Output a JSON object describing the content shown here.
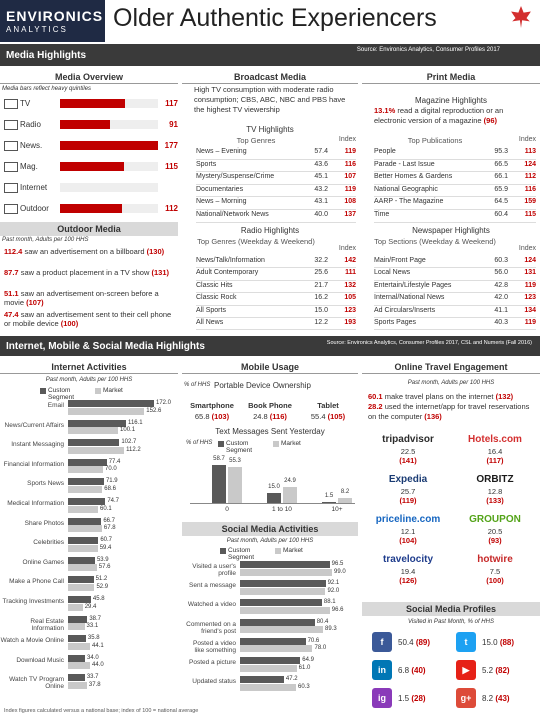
{
  "header": {
    "brand": "ENVIRONICS",
    "brand_sub": "ANALYTICS",
    "title": "Older Authentic Experiencers",
    "section": "Media Highlights",
    "source": "Source: Environics Analytics, Consumer Profiles 2017"
  },
  "media_overview": {
    "title": "Media Overview",
    "note": "Media bars reflect heavy quintiles",
    "items": [
      {
        "label": "TV",
        "value": 117
      },
      {
        "label": "Radio",
        "value": 91
      },
      {
        "label": "News.",
        "value": 177
      },
      {
        "label": "Mag.",
        "value": 115
      },
      {
        "label": "Internet",
        "value": null
      },
      {
        "label": "Outdoor",
        "value": 112
      }
    ]
  },
  "outdoor_media": {
    "title": "Outdoor Media",
    "note": "Past month, Adults per 100 HHS",
    "items": [
      {
        "value": 112.4,
        "text": "saw an advertisement on a billboard",
        "index": "(130)"
      },
      {
        "value": 87.7,
        "text": "saw a product placement in a TV show",
        "index": "(131)"
      },
      {
        "value": 51.1,
        "text": "saw an advertisement on-screen before a movie",
        "index": "(107)"
      },
      {
        "value": 47.4,
        "text": "saw an advertisement sent to their cell phone or mobile device",
        "index": "(100)"
      }
    ]
  },
  "broadcast_media": {
    "title": "Broadcast Media",
    "text": "High TV consumption with moderate radio consumption; CBS, ABC, NBC and PBS have the highest TV viewership",
    "tv": {
      "title": "TV Highlights",
      "header": [
        "Top Genres",
        "Index"
      ],
      "rows": [
        [
          "News – Evening",
          57.4,
          119
        ],
        [
          "Sports",
          43.6,
          116
        ],
        [
          "Mystery/Suspense/Crime",
          45.1,
          107
        ],
        [
          "Documentaries",
          43.2,
          119
        ],
        [
          "News – Morning",
          43.1,
          108
        ],
        [
          "National/Network News",
          "40.0",
          137
        ]
      ]
    },
    "radio": {
      "title": "Radio Highlights",
      "header": [
        "Top Genres (Weekday & Weekend)",
        "Index"
      ],
      "rows": [
        [
          "News/Talk/Information",
          32.2,
          142
        ],
        [
          "Adult Contemporary",
          25.6,
          111
        ],
        [
          "Classic Hits",
          21.7,
          132
        ],
        [
          "Classic Rock",
          16.2,
          105
        ],
        [
          "All Sports",
          "15.0",
          123
        ],
        [
          "All News",
          12.2,
          193
        ]
      ]
    }
  },
  "print_media": {
    "title": "Print Media",
    "magazine": {
      "title": "Magazine Highlights",
      "value": "13.1%",
      "text": "read a digital reproduction or an electronic version of a magazine",
      "index": "(96)",
      "header": [
        "Top Publications",
        "Index"
      ],
      "rows": [
        [
          "People",
          95.3,
          113
        ],
        [
          "Parade - Last Issue",
          66.5,
          124
        ],
        [
          "Better Homes & Gardens",
          66.1,
          112
        ],
        [
          "National Geographic",
          65.9,
          116
        ],
        [
          "AARP - The Magazine",
          64.5,
          159
        ],
        [
          "Time",
          60.4,
          115
        ]
      ]
    },
    "newspaper": {
      "title": "Newspaper Highlights",
      "header": [
        "Top Sections (Weekday & Weekend)",
        "Index"
      ],
      "rows": [
        [
          "Main/Front Page",
          60.3,
          124
        ],
        [
          "Local News",
          "56.0",
          131
        ],
        [
          "Entertain/Lifestyle Pages",
          42.8,
          119
        ],
        [
          "Internal/National News",
          "42.0",
          123
        ],
        [
          "Ad Circulars/Inserts",
          41.1,
          134
        ],
        [
          "Sports Pages",
          40.3,
          119
        ]
      ]
    }
  },
  "section2": {
    "title": "Internet, Mobile & Social Media Highlights",
    "source": "Source: Environics Analytics, Consumer Profiles 2017, CSL and Numeris (Fall 2016)"
  },
  "internet_activities": {
    "title": "Internet Activities",
    "note": "Past month, Adults per 100 HHS",
    "categories": [
      "Email",
      "News/Current Affairs",
      "Instant Messaging",
      "Financial Information",
      "Sports News",
      "Medical Information",
      "Share Photos",
      "Celebrities",
      "Online Games",
      "Make a Phone Call",
      "Tracking Investments",
      "Real Estate Information",
      "Watch a Movie Online",
      "Download Music",
      "Watch TV Program Online"
    ],
    "series": [
      {
        "name": "Custom Segment",
        "color": "#595959",
        "values": [
          172.0,
          116.1,
          102.7,
          77.4,
          71.9,
          74.7,
          66.7,
          60.7,
          53.9,
          51.2,
          45.8,
          38.7,
          35.8,
          34.0,
          33.7
        ],
        "value_labels": [
          "172.0",
          "116.1",
          "102.7",
          "77.4",
          "71.9",
          "74.7",
          "66.7",
          "60.7",
          "53.9",
          "51.2",
          "45.8",
          "38.7",
          "35.8",
          "34.0",
          "33.7"
        ]
      },
      {
        "name": "Market",
        "color": "#c9c9c9",
        "values": [
          152.6,
          100.1,
          112.2,
          70.0,
          68.6,
          60.1,
          67.8,
          59.4,
          57.6,
          52.9,
          29.4,
          33.1,
          44.1,
          44.0,
          37.8
        ],
        "value_labels": [
          "152.6",
          "100.1",
          "112.2",
          "70.0",
          "68.6",
          "60.1",
          "67.8",
          "59.4",
          "57.6",
          "52.9",
          "29.4",
          "33.1",
          "44.1",
          "44.0",
          "37.8"
        ]
      }
    ]
  },
  "mobile_usage": {
    "title": "Mobile Usage",
    "note": "% of HHS",
    "subtitle": "Portable Device Ownership",
    "devices": [
      {
        "name": "Smartphone",
        "value": 65.8,
        "index": "(103)"
      },
      {
        "name": "Book Phone",
        "value": 24.8,
        "index": "(116)"
      },
      {
        "name": "Tablet",
        "value": 55.4,
        "index": "(105)"
      }
    ],
    "texts": {
      "title": "Text Messages Sent Yesterday",
      "note": "% of HHS",
      "categories": [
        "0",
        "1 to 10",
        "10+"
      ],
      "series": [
        {
          "name": "Custom Segment",
          "color": "#595959",
          "values": [
            58.7,
            15.0,
            1.5
          ],
          "value_labels": [
            "58.7",
            "15.0",
            "1.5"
          ]
        },
        {
          "name": "Market",
          "color": "#c9c9c9",
          "values": [
            55.3,
            24.9,
            8.2
          ],
          "value_labels": [
            "55.3",
            "24.9",
            "8.2"
          ]
        }
      ]
    }
  },
  "social_activities": {
    "title": "Social Media Activities",
    "note": "Past month, Adults per 100 HHS",
    "categories": [
      "Visited a user's profile",
      "Sent a message",
      "Watched a video",
      "Commented on a friend's post",
      "Posted a video like something",
      "Posted a picture",
      "Updated status"
    ],
    "series": [
      {
        "name": "Custom Segment",
        "color": "#595959",
        "values": [
          96.5,
          92.1,
          88.1,
          80.4,
          70.6,
          64.9,
          47.2
        ],
        "value_labels": [
          "96.5",
          "92.1",
          "88.1",
          "80.4",
          "70.6",
          "64.9",
          "47.2"
        ]
      },
      {
        "name": "Market",
        "color": "#c9c9c9",
        "values": [
          99.0,
          92.0,
          96.6,
          89.3,
          78.0,
          61.0,
          60.3
        ],
        "value_labels": [
          "99.0",
          "92.0",
          "96.6",
          "89.3",
          "78.0",
          "61.0",
          "60.3"
        ]
      }
    ]
  },
  "travel": {
    "title": "Online Travel Engagement",
    "note": "Past month, Adults per 100 HHS",
    "statements": [
      {
        "value": 60.1,
        "text": "make travel plans on the internet",
        "index": "(132)"
      },
      {
        "value": 28.2,
        "text": "used the internet/app for travel reservations on the computer",
        "index": "(136)"
      }
    ],
    "brands": [
      {
        "name": "tripadvisor",
        "value": 22.5,
        "index": "(141)",
        "color": "#2b2b2b"
      },
      {
        "name": "Hotels.com",
        "value": 16.4,
        "index": "(117)",
        "color": "#d32f2f"
      },
      {
        "name": "Expedia",
        "value": 25.7,
        "index": "(119)",
        "color": "#1a3b73"
      },
      {
        "name": "ORBITZ",
        "value": 12.8,
        "index": "(133)",
        "color": "#1a1a1a"
      },
      {
        "name": "priceline.com",
        "value": 12.1,
        "index": "(104)",
        "color": "#1565c0"
      },
      {
        "name": "GROUPON",
        "value": 20.5,
        "index": "(93)",
        "color": "#53a318"
      },
      {
        "name": "travelocity",
        "value": 19.4,
        "index": "(126)",
        "color": "#1e3c8c"
      },
      {
        "name": "hotwire",
        "value": 7.5,
        "index": "(100)",
        "color": "#c62828"
      }
    ]
  },
  "social_profiles": {
    "title": "Social Media Profiles",
    "note": "Visited in Past Month, % of HHS",
    "items": [
      {
        "name": "f",
        "color": "#3b5998",
        "value": 50.4,
        "index": "(89)"
      },
      {
        "name": "t",
        "color": "#1da1f2",
        "value": "15.0",
        "index": "(88)"
      },
      {
        "name": "in",
        "color": "#0077b5",
        "value": 6.8,
        "index": "(40)"
      },
      {
        "name": "▶",
        "color": "#e62117",
        "value": 5.2,
        "index": "(82)"
      },
      {
        "name": "ig",
        "color": "#8a3ab9",
        "value": 1.5,
        "index": "(28)"
      },
      {
        "name": "g+",
        "color": "#dd4b39",
        "value": 8.2,
        "index": "(43)"
      }
    ]
  },
  "footer": "Index figures calculated versus a national base; index of 100 = national average"
}
